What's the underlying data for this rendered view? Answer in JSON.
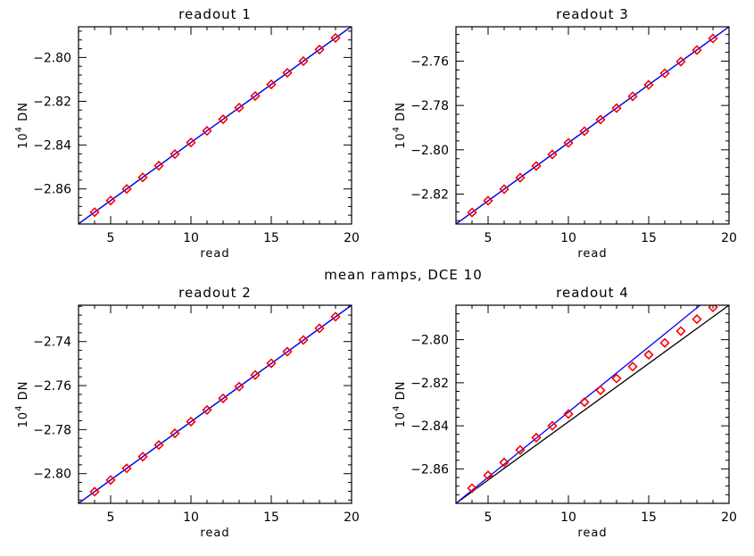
{
  "figure": {
    "suptitle": "mean ramps, DCE 10",
    "colors": {
      "data_markers": "#ff0000",
      "black_fit": "#000000",
      "blue_fit": "#0000ff"
    }
  },
  "chart_data": [
    {
      "type": "scatter",
      "title": "readout 1",
      "xlabel": "read",
      "ylabel": "10^4 DN",
      "xlim": [
        3,
        20
      ],
      "ylim": [
        -2.876,
        -2.786
      ],
      "xticks": [
        5,
        10,
        15,
        20
      ],
      "yticks": [
        -2.8,
        -2.82,
        -2.84,
        -2.86
      ],
      "x": [
        4,
        5,
        6,
        7,
        8,
        9,
        10,
        11,
        12,
        13,
        14,
        15,
        16,
        17,
        18,
        19
      ],
      "y": [
        -2.8706,
        -2.8653,
        -2.86,
        -2.8547,
        -2.8494,
        -2.8441,
        -2.8388,
        -2.8335,
        -2.8282,
        -2.8229,
        -2.8176,
        -2.8123,
        -2.807,
        -2.8017,
        -2.7964,
        -2.7911
      ],
      "fit_lines": [
        {
          "color": "#000000",
          "x": [
            3,
            20
          ],
          "y": [
            -2.8759,
            -2.7858
          ]
        },
        {
          "color": "#0000ff",
          "x": [
            3,
            20
          ],
          "y": [
            -2.8759,
            -2.7858
          ]
        }
      ]
    },
    {
      "type": "scatter",
      "title": "readout 3",
      "xlabel": "read",
      "ylabel": "10^4 DN",
      "xlim": [
        3,
        20
      ],
      "ylim": [
        -2.8335,
        -2.7445
      ],
      "xticks": [
        5,
        10,
        15,
        20
      ],
      "yticks": [
        -2.76,
        -2.78,
        -2.8,
        -2.82
      ],
      "x": [
        4,
        5,
        6,
        7,
        8,
        9,
        10,
        11,
        12,
        13,
        14,
        15,
        16,
        17,
        18,
        19
      ],
      "y": [
        -2.8283,
        -2.823,
        -2.8178,
        -2.8126,
        -2.8073,
        -2.8021,
        -2.7969,
        -2.7916,
        -2.7864,
        -2.7812,
        -2.7759,
        -2.7707,
        -2.7655,
        -2.7602,
        -2.755,
        -2.7498
      ],
      "fit_lines": [
        {
          "color": "#000000",
          "x": [
            3,
            20
          ],
          "y": [
            -2.8335,
            -2.7445
          ]
        },
        {
          "color": "#0000ff",
          "x": [
            3,
            20
          ],
          "y": [
            -2.8335,
            -2.7445
          ]
        }
      ]
    },
    {
      "type": "scatter",
      "title": "readout 2",
      "xlabel": "read",
      "ylabel": "10^4 DN",
      "xlim": [
        3,
        20
      ],
      "ylim": [
        -2.8135,
        -2.7235
      ],
      "xticks": [
        5,
        10,
        15,
        20
      ],
      "yticks": [
        -2.74,
        -2.76,
        -2.78,
        -2.8
      ],
      "x": [
        4,
        5,
        6,
        7,
        8,
        9,
        10,
        11,
        12,
        13,
        14,
        15,
        16,
        17,
        18,
        19
      ],
      "y": [
        -2.8082,
        -2.8029,
        -2.7976,
        -2.7923,
        -2.787,
        -2.7817,
        -2.7764,
        -2.7711,
        -2.7658,
        -2.7605,
        -2.7552,
        -2.7499,
        -2.7446,
        -2.7393,
        -2.734,
        -2.7287
      ],
      "fit_lines": [
        {
          "color": "#000000",
          "x": [
            3,
            20
          ],
          "y": [
            -2.8135,
            -2.7235
          ]
        },
        {
          "color": "#0000ff",
          "x": [
            3,
            20
          ],
          "y": [
            -2.8135,
            -2.7235
          ]
        }
      ]
    },
    {
      "type": "scatter",
      "title": "readout 4",
      "xlabel": "read",
      "ylabel": "10^4 DN",
      "xlim": [
        3,
        20
      ],
      "ylim": [
        -2.876,
        -2.784
      ],
      "xticks": [
        5,
        10,
        15,
        20
      ],
      "yticks": [
        -2.8,
        -2.82,
        -2.84,
        -2.86
      ],
      "x": [
        4,
        5,
        6,
        7,
        8,
        9,
        10,
        11,
        12,
        13,
        14,
        15,
        16,
        17,
        18,
        19
      ],
      "y": [
        -2.869,
        -2.863,
        -2.857,
        -2.8512,
        -2.8455,
        -2.84,
        -2.8345,
        -2.829,
        -2.8235,
        -2.818,
        -2.8125,
        -2.807,
        -2.8015,
        -2.796,
        -2.7905,
        -2.785
      ],
      "fit_lines": [
        {
          "color": "#000000",
          "x": [
            3,
            20
          ],
          "y": [
            -2.876,
            -2.784
          ]
        },
        {
          "color": "#0000ff",
          "x": [
            3,
            18.2
          ],
          "y": [
            -2.876,
            -2.784
          ]
        }
      ]
    }
  ]
}
